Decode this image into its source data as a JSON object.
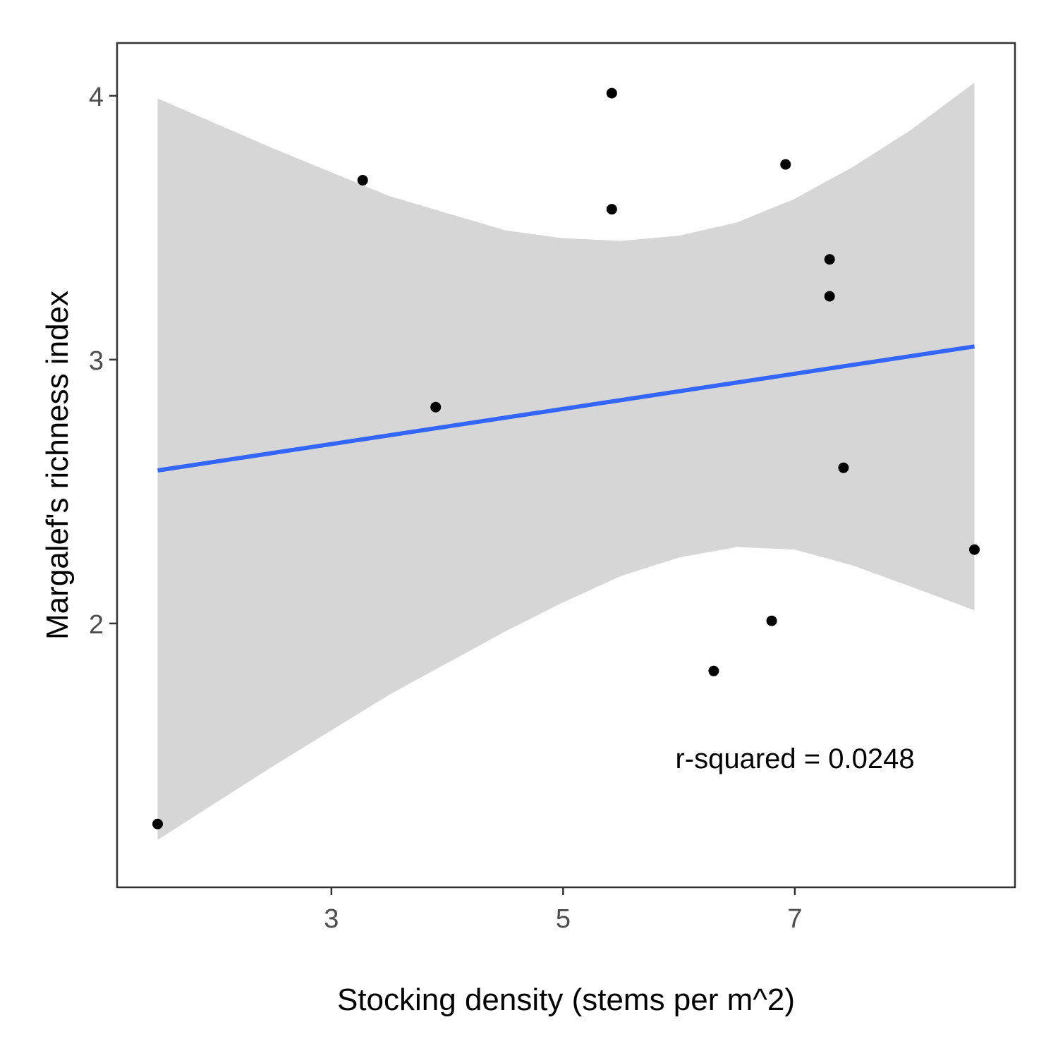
{
  "chart_data": {
    "type": "scatter",
    "xlabel": "Stocking density (stems per m^2)",
    "ylabel": "Margalef's richness index",
    "xlim": [
      1.15,
      8.9
    ],
    "ylim": [
      1.0,
      4.2
    ],
    "xticks": [
      3,
      5,
      7
    ],
    "yticks": [
      2,
      3,
      4
    ],
    "grid": false,
    "points": [
      {
        "x": 1.5,
        "y": 1.24
      },
      {
        "x": 3.27,
        "y": 3.68
      },
      {
        "x": 3.9,
        "y": 2.82
      },
      {
        "x": 5.42,
        "y": 4.01
      },
      {
        "x": 5.42,
        "y": 3.57
      },
      {
        "x": 6.3,
        "y": 1.82
      },
      {
        "x": 6.8,
        "y": 2.01
      },
      {
        "x": 6.92,
        "y": 3.74
      },
      {
        "x": 7.3,
        "y": 3.38
      },
      {
        "x": 7.3,
        "y": 3.24
      },
      {
        "x": 7.42,
        "y": 2.59
      },
      {
        "x": 8.55,
        "y": 2.28
      }
    ],
    "fit_line": {
      "x": [
        1.5,
        8.55
      ],
      "y": [
        2.58,
        3.05
      ]
    },
    "confidence_band": {
      "x": [
        1.5,
        2.5,
        3.5,
        4.5,
        5.0,
        5.5,
        6.0,
        6.5,
        7.0,
        7.5,
        8.0,
        8.55
      ],
      "upper": [
        3.99,
        3.8,
        3.62,
        3.49,
        3.46,
        3.45,
        3.47,
        3.52,
        3.61,
        3.73,
        3.87,
        4.05
      ],
      "lower": [
        1.18,
        1.46,
        1.73,
        1.97,
        2.08,
        2.18,
        2.25,
        2.29,
        2.28,
        2.22,
        2.14,
        2.05
      ]
    },
    "annotation": "r-squared = 0.0248",
    "colors": {
      "points": "#000000",
      "fit_line": "#3366ff",
      "band": "#d6d6d6",
      "panel_border": "#333333",
      "tick_label": "#4d4d4d"
    }
  }
}
